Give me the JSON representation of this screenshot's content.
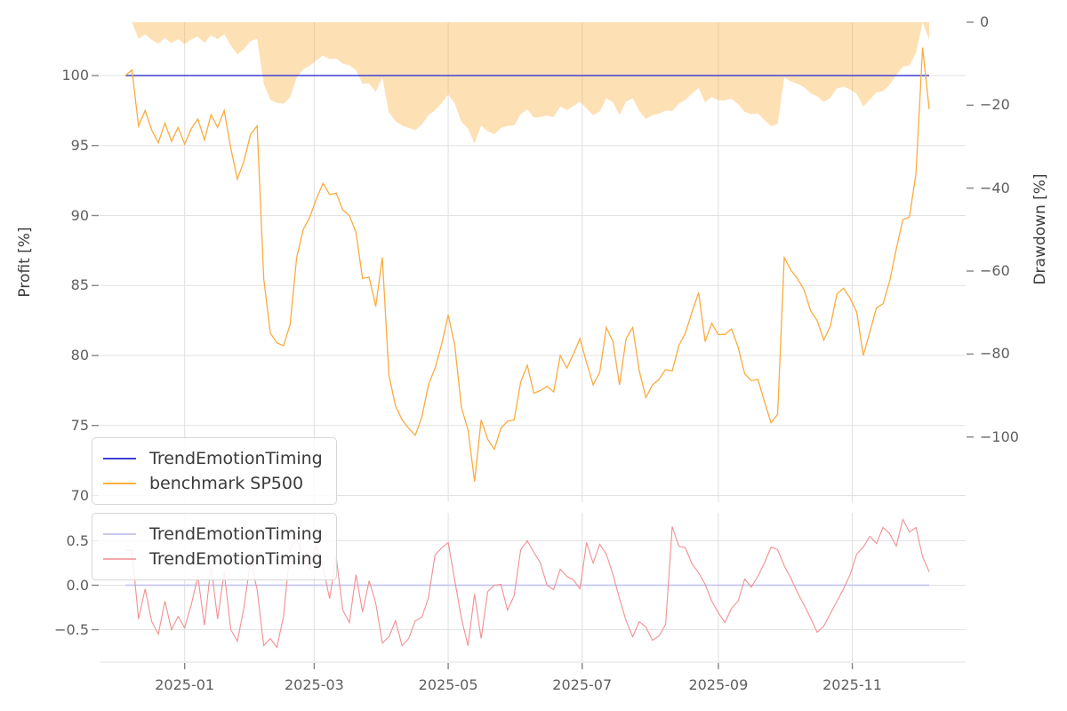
{
  "figure": {
    "background": "#ffffff",
    "grid_color": "#e2e2e2",
    "tick_color": "#848484"
  },
  "axes": {
    "top": {
      "ylabel": "Profit [%]",
      "yticks": [
        100,
        95,
        90,
        85,
        80,
        75,
        70
      ],
      "right_ylabel": "Drawdown [%]",
      "right_yticks": [
        0,
        -20,
        -40,
        -60,
        -80,
        -100
      ],
      "right_ytick_labels": [
        "0",
        "−20",
        "−40",
        "−60",
        "−80",
        "−100"
      ]
    },
    "bottom": {
      "yticks": [
        0.5,
        0.0,
        -0.5
      ],
      "ytick_labels": [
        "0.5",
        "0.0",
        "−0.5"
      ]
    },
    "x": {
      "tick_dates": [
        "2025-01-01",
        "2025-03-01",
        "2025-05-01",
        "2025-07-01",
        "2025-09-01",
        "2025-11-01"
      ],
      "tick_labels": [
        "2025-01",
        "2025-03",
        "2025-05",
        "2025-07",
        "2025-09",
        "2025-11"
      ]
    }
  },
  "legend_top": {
    "items": [
      {
        "label": "TrendEmotionTiming",
        "color": "#4040d6"
      },
      {
        "label": "benchmark SP500",
        "color": "#fbb040"
      }
    ]
  },
  "legend_bottom": {
    "items": [
      {
        "label": "TrendEmotionTiming",
        "color": "#c8c8f1"
      },
      {
        "label": "TrendEmotionTiming",
        "color": "#f4a9ab"
      }
    ]
  },
  "chart_data": [
    {
      "type": "line",
      "title": "",
      "xlabel": "",
      "ylabel": "Profit [%]",
      "ylabel_right": "Drawdown [%]",
      "x_start_date": "2024-12-05",
      "x_step_days": 3,
      "n_points": 123,
      "ylim": [
        69.5,
        103.8
      ],
      "ylim_right": [
        -115.7,
        0
      ],
      "grid": true,
      "legend_position": "lower left",
      "series": [
        {
          "name": "TrendEmotionTiming",
          "color": "#4040d6",
          "width": 1.5,
          "constant": 100.0
        },
        {
          "name": "benchmark SP500",
          "color": "#fbab3d",
          "width": 1.3,
          "values": [
            100.0,
            100.4,
            96.4,
            97.5,
            96.1,
            95.2,
            96.6,
            95.3,
            96.3,
            95.1,
            96.2,
            96.9,
            95.4,
            97.2,
            96.3,
            97.5,
            94.8,
            92.6,
            93.9,
            95.8,
            96.4,
            85.5,
            81.6,
            80.9,
            80.7,
            82.2,
            87.0,
            89.0,
            89.9,
            91.2,
            92.3,
            91.5,
            91.6,
            90.4,
            90.0,
            88.8,
            85.5,
            85.6,
            83.5,
            87.0,
            78.6,
            76.4,
            75.4,
            74.8,
            74.3,
            75.6,
            77.9,
            79.1,
            80.8,
            82.9,
            80.7,
            76.3,
            74.7,
            71.0,
            75.4,
            74.0,
            73.3,
            74.8,
            75.3,
            75.4,
            78.1,
            79.3,
            77.3,
            77.5,
            77.8,
            77.4,
            80.0,
            79.1,
            80.1,
            81.2,
            79.5,
            77.9,
            78.8,
            82.0,
            81.0,
            77.9,
            81.2,
            82.0,
            78.9,
            77.0,
            77.9,
            78.3,
            79.0,
            78.9,
            80.7,
            81.6,
            83.1,
            84.5,
            81.0,
            82.3,
            81.5,
            81.5,
            81.9,
            80.6,
            78.7,
            78.2,
            78.3,
            76.7,
            75.2,
            75.8,
            87.0,
            86.1,
            85.5,
            84.7,
            83.2,
            82.5,
            81.1,
            82.1,
            84.4,
            84.8,
            84.1,
            83.1,
            80.0,
            81.7,
            83.4,
            83.7,
            85.3,
            87.6,
            89.7,
            89.9,
            93.0,
            102.0,
            97.6
          ]
        },
        {
          "name": "benchmark drawdown",
          "axis": "right",
          "render": "area",
          "color": "rgba(252,174,60,0.38)",
          "derived": "percent distance of benchmark SP500 from its running maximum, filled from 0"
        }
      ]
    },
    {
      "type": "line",
      "title": "",
      "x_start_date": "2024-12-05",
      "x_step_days": 3,
      "n_points": 123,
      "ylim": [
        -0.87,
        0.82
      ],
      "grid": true,
      "legend_position": "upper left",
      "series": [
        {
          "name": "TrendEmotionTiming",
          "color": "#c8c8f1",
          "width": 1.8,
          "constant": 0.0
        },
        {
          "name": "TrendEmotionTiming",
          "color": "#f19094",
          "width": 1.1,
          "values": [
            0.39,
            0.39,
            -0.38,
            -0.04,
            -0.41,
            -0.55,
            -0.18,
            -0.5,
            -0.35,
            -0.48,
            -0.22,
            0.1,
            -0.45,
            0.22,
            -0.38,
            0.15,
            -0.5,
            -0.63,
            -0.25,
            0.28,
            -0.05,
            -0.68,
            -0.6,
            -0.7,
            -0.35,
            0.4,
            0.52,
            0.3,
            0.18,
            0.45,
            0.2,
            -0.15,
            0.32,
            -0.28,
            -0.42,
            0.12,
            -0.3,
            0.05,
            -0.2,
            -0.65,
            -0.58,
            -0.4,
            -0.68,
            -0.6,
            -0.4,
            -0.36,
            -0.14,
            0.34,
            0.42,
            0.48,
            0.05,
            -0.37,
            -0.68,
            -0.1,
            -0.6,
            -0.07,
            0.0,
            0.01,
            -0.28,
            -0.12,
            0.4,
            0.5,
            0.37,
            0.25,
            0.0,
            -0.05,
            0.18,
            0.1,
            0.06,
            -0.04,
            0.48,
            0.25,
            0.46,
            0.35,
            0.12,
            -0.15,
            -0.4,
            -0.58,
            -0.41,
            -0.47,
            -0.62,
            -0.57,
            -0.44,
            0.66,
            0.44,
            0.42,
            0.24,
            0.14,
            0.01,
            -0.18,
            -0.31,
            -0.42,
            -0.26,
            -0.18,
            0.07,
            -0.02,
            0.1,
            0.25,
            0.43,
            0.4,
            0.22,
            0.08,
            -0.08,
            -0.22,
            -0.37,
            -0.53,
            -0.46,
            -0.32,
            -0.18,
            -0.04,
            0.12,
            0.35,
            0.43,
            0.55,
            0.47,
            0.65,
            0.58,
            0.44,
            0.74,
            0.6,
            0.65,
            0.32,
            0.15
          ]
        }
      ]
    }
  ]
}
